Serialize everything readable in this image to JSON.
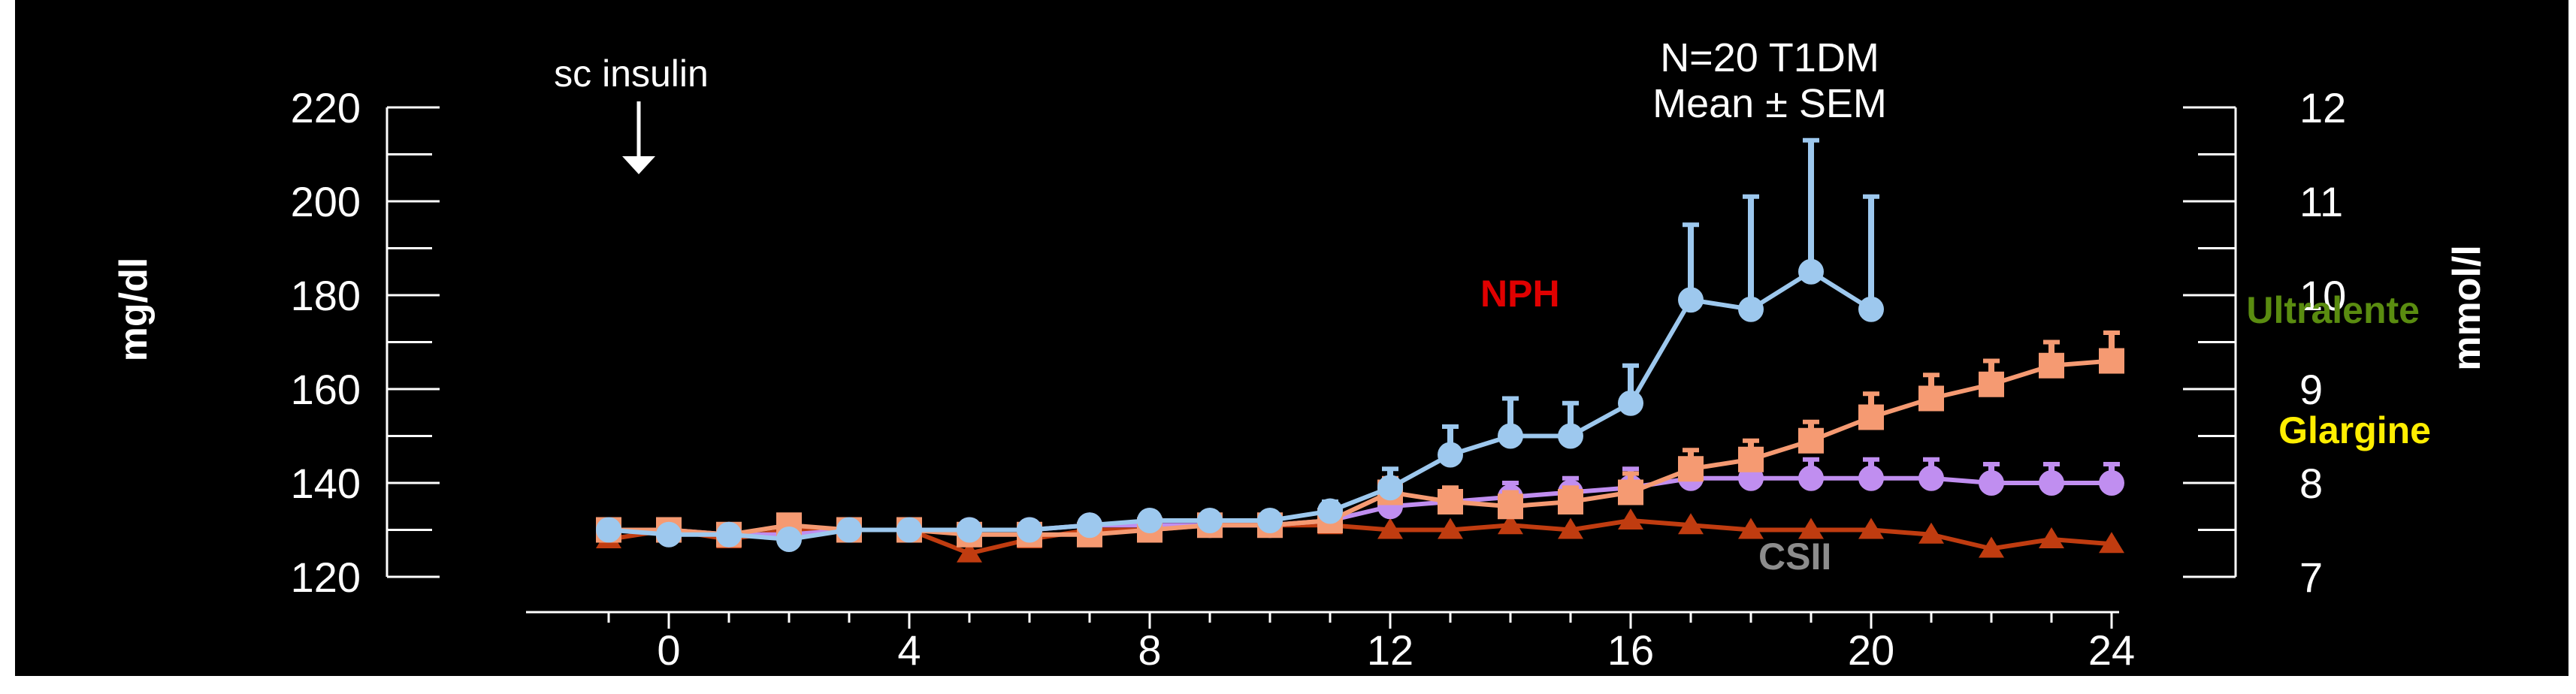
{
  "chart_data": {
    "type": "line",
    "annotation": "sc insulin",
    "title_line1": "N=20 T1DM",
    "title_line2": "Mean ± SEM",
    "ylabel_left": "mg/dl",
    "ylabel_right": "mmol/l",
    "xlim": [
      -1,
      24
    ],
    "ylim": [
      120,
      220
    ],
    "y2lim": [
      7,
      12
    ],
    "x_ticks": [
      0,
      4,
      8,
      12,
      16,
      20,
      24
    ],
    "y_ticks": [
      120,
      140,
      160,
      180,
      200,
      220
    ],
    "y2_ticks": [
      7,
      8,
      9,
      10,
      11,
      12
    ],
    "series": [
      {
        "name": "NPH",
        "color": "#9dc8ee",
        "label_color": "#e00000",
        "marker": "circle",
        "x": [
          -1,
          0,
          1,
          2,
          3,
          4,
          5,
          6,
          7,
          8,
          9,
          10,
          11,
          12,
          13,
          14,
          15,
          16,
          17,
          18,
          19,
          20
        ],
        "y": [
          130,
          129,
          129,
          128,
          130,
          130,
          130,
          130,
          131,
          132,
          132,
          132,
          134,
          139,
          146,
          150,
          150,
          157,
          179,
          177,
          185,
          177
        ],
        "err": [
          0,
          0,
          0,
          0,
          0,
          0,
          0,
          0,
          0,
          0,
          0,
          0,
          2,
          4,
          6,
          8,
          7,
          8,
          16,
          24,
          28,
          24
        ]
      },
      {
        "name": "Ultralente",
        "color": "#f59a72",
        "label_color": "#5a8c10",
        "marker": "square",
        "x": [
          -1,
          0,
          1,
          2,
          3,
          4,
          5,
          6,
          7,
          8,
          9,
          10,
          11,
          12,
          13,
          14,
          15,
          16,
          17,
          18,
          19,
          20,
          21,
          22,
          23,
          24
        ],
        "y": [
          130,
          130,
          129,
          131,
          130,
          130,
          129,
          129,
          129,
          130,
          131,
          131,
          132,
          138,
          136,
          135,
          136,
          138,
          143,
          145,
          149,
          154,
          158,
          161,
          165,
          166
        ],
        "err": [
          0,
          0,
          0,
          0,
          0,
          0,
          0,
          0,
          0,
          0,
          0,
          0,
          2,
          3,
          3,
          3,
          3,
          4,
          4,
          4,
          4,
          5,
          5,
          5,
          5,
          6
        ]
      },
      {
        "name": "Glargine",
        "color": "#c08ef0",
        "label_color": "#ffee00",
        "marker": "circle",
        "x": [
          -1,
          0,
          1,
          2,
          3,
          4,
          5,
          6,
          7,
          8,
          9,
          10,
          11,
          12,
          13,
          14,
          15,
          16,
          17,
          18,
          19,
          20,
          21,
          22,
          23,
          24
        ],
        "y": [
          130,
          130,
          129,
          129,
          130,
          130,
          130,
          130,
          131,
          131,
          131,
          131,
          132,
          135,
          136,
          137,
          138,
          139,
          141,
          141,
          141,
          141,
          141,
          140,
          140,
          140
        ],
        "err": [
          0,
          0,
          0,
          0,
          0,
          0,
          0,
          0,
          0,
          0,
          0,
          0,
          1,
          2,
          2,
          3,
          3,
          4,
          4,
          4,
          4,
          4,
          4,
          4,
          4,
          4
        ]
      },
      {
        "name": "CSII",
        "color": "#c03c10",
        "label_color": "#8c8c8c",
        "marker": "triangle",
        "x": [
          -1,
          0,
          1,
          2,
          3,
          4,
          5,
          6,
          7,
          8,
          9,
          10,
          11,
          12,
          13,
          14,
          15,
          16,
          17,
          18,
          19,
          20,
          21,
          22,
          23,
          24
        ],
        "y": [
          128,
          130,
          128,
          130,
          130,
          130,
          125,
          128,
          130,
          130,
          131,
          131,
          131,
          130,
          130,
          131,
          130,
          132,
          131,
          130,
          130,
          130,
          129,
          126,
          128,
          127
        ],
        "err": [
          0,
          0,
          0,
          0,
          0,
          0,
          0,
          0,
          0,
          0,
          0,
          0,
          0,
          0,
          0,
          0,
          0,
          0,
          0,
          0,
          0,
          0,
          0,
          0,
          0,
          0
        ]
      }
    ],
    "grid": false,
    "legend_placement": "inline labels"
  }
}
